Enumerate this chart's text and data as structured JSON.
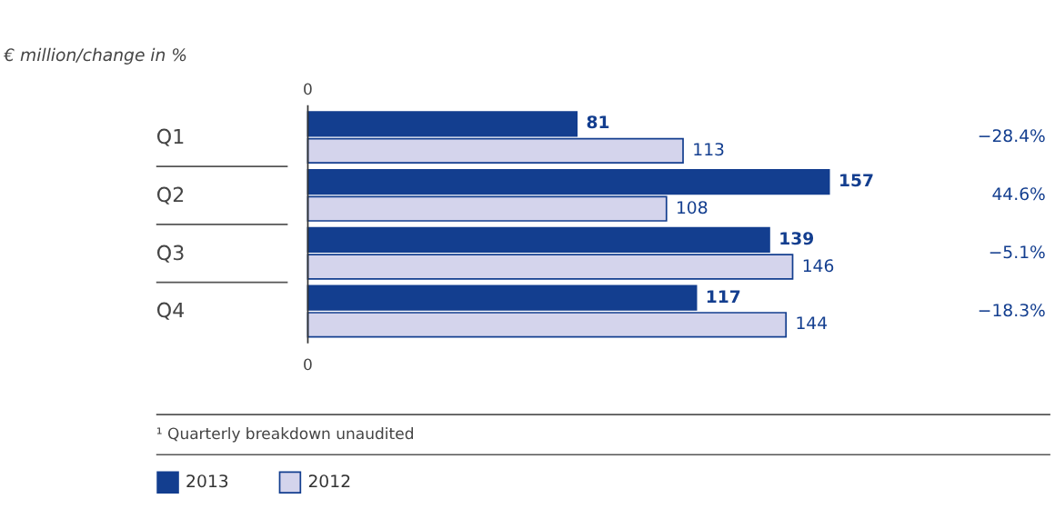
{
  "chart_data": {
    "type": "bar",
    "orientation": "horizontal",
    "title": "€ million/change in %",
    "categories": [
      "Q1",
      "Q2",
      "Q3",
      "Q4"
    ],
    "series": [
      {
        "name": "2013",
        "color": "#133e8f",
        "values": [
          81,
          157,
          139,
          117
        ]
      },
      {
        "name": "2012",
        "color": "#d4d4ec",
        "values": [
          113,
          108,
          146,
          144
        ]
      }
    ],
    "data_labels": true,
    "legend": "bottom left",
    "annotations": [
      "−28.4%",
      "44.6%",
      "−5.1%",
      "−18.3%",
      "¹ Quarterly breakdown unaudited",
      "0",
      "0"
    ]
  }
}
